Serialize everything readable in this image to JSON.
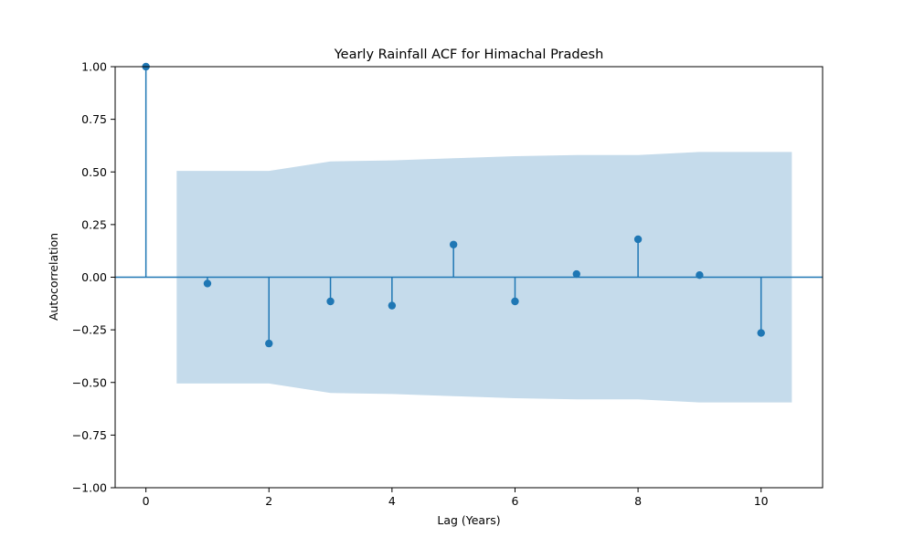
{
  "chart_data": {
    "type": "stem",
    "title": "Yearly Rainfall ACF for Himachal Pradesh",
    "xlabel": "Lag (Years)",
    "ylabel": "Autocorrelation",
    "xlim": [
      -0.5,
      11.0
    ],
    "ylim": [
      -1.0,
      1.0
    ],
    "xticks": [
      "0",
      "2",
      "4",
      "6",
      "8",
      "10"
    ],
    "yticks": [
      "1.00",
      "0.75",
      "0.50",
      "0.25",
      "0.00",
      "−0.25",
      "−0.50",
      "−0.75",
      "−1.00"
    ],
    "lags": [
      0,
      1,
      2,
      3,
      4,
      5,
      6,
      7,
      8,
      9,
      10
    ],
    "values": [
      1.0,
      -0.03,
      -0.315,
      -0.115,
      -0.135,
      0.155,
      -0.115,
      0.015,
      0.18,
      0.01,
      -0.265
    ],
    "confidence_band": {
      "x": [
        0.5,
        2.0,
        3.0,
        4.0,
        5.0,
        6.0,
        7.0,
        8.0,
        9.0,
        10.5
      ],
      "upper": [
        0.505,
        0.505,
        0.55,
        0.555,
        0.565,
        0.575,
        0.58,
        0.58,
        0.595,
        0.595
      ],
      "lower": [
        -0.505,
        -0.505,
        -0.55,
        -0.555,
        -0.565,
        -0.575,
        -0.58,
        -0.58,
        -0.595,
        -0.595
      ]
    },
    "colors": {
      "stem": "#1f77b4",
      "band": "#c5dbeb",
      "axis": "#000000"
    },
    "grid": false
  }
}
